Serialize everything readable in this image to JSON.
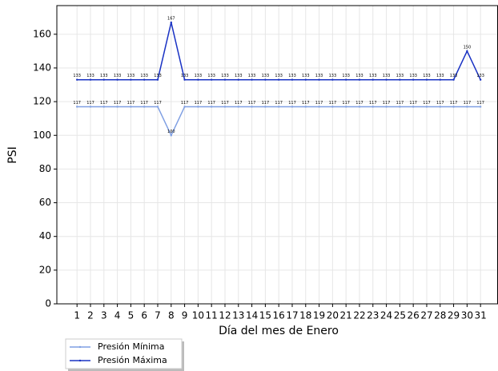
{
  "chart_data": {
    "type": "line",
    "x": [
      1,
      2,
      3,
      4,
      5,
      6,
      7,
      8,
      9,
      10,
      11,
      12,
      13,
      14,
      15,
      16,
      17,
      18,
      19,
      20,
      21,
      22,
      23,
      24,
      25,
      26,
      27,
      28,
      29,
      30,
      31
    ],
    "xlabel": "Día del mes de  Enero",
    "ylabel": "PSI",
    "xlim": [
      -0.5,
      32.3
    ],
    "ylim": [
      0,
      177
    ],
    "xticks": [
      1,
      2,
      3,
      4,
      5,
      6,
      7,
      8,
      9,
      10,
      11,
      12,
      13,
      14,
      15,
      16,
      17,
      18,
      19,
      20,
      21,
      22,
      23,
      24,
      25,
      26,
      27,
      28,
      29,
      30,
      31
    ],
    "yticks": [
      0,
      20,
      40,
      60,
      80,
      100,
      120,
      140,
      160
    ],
    "grid": true,
    "legend": "below-left",
    "series": [
      {
        "name": "Presión Mínima",
        "color": "#7f9fe3",
        "values": [
          117,
          117,
          117,
          117,
          117,
          117,
          117,
          100,
          117,
          117,
          117,
          117,
          117,
          117,
          117,
          117,
          117,
          117,
          117,
          117,
          117,
          117,
          117,
          117,
          117,
          117,
          117,
          117,
          117,
          117,
          117
        ]
      },
      {
        "name": "Presión Máxima",
        "color": "#1a33c4",
        "values": [
          133,
          133,
          133,
          133,
          133,
          133,
          133,
          167,
          133,
          133,
          133,
          133,
          133,
          133,
          133,
          133,
          133,
          133,
          133,
          133,
          133,
          133,
          133,
          133,
          133,
          133,
          133,
          133,
          133,
          150,
          133
        ]
      }
    ]
  }
}
